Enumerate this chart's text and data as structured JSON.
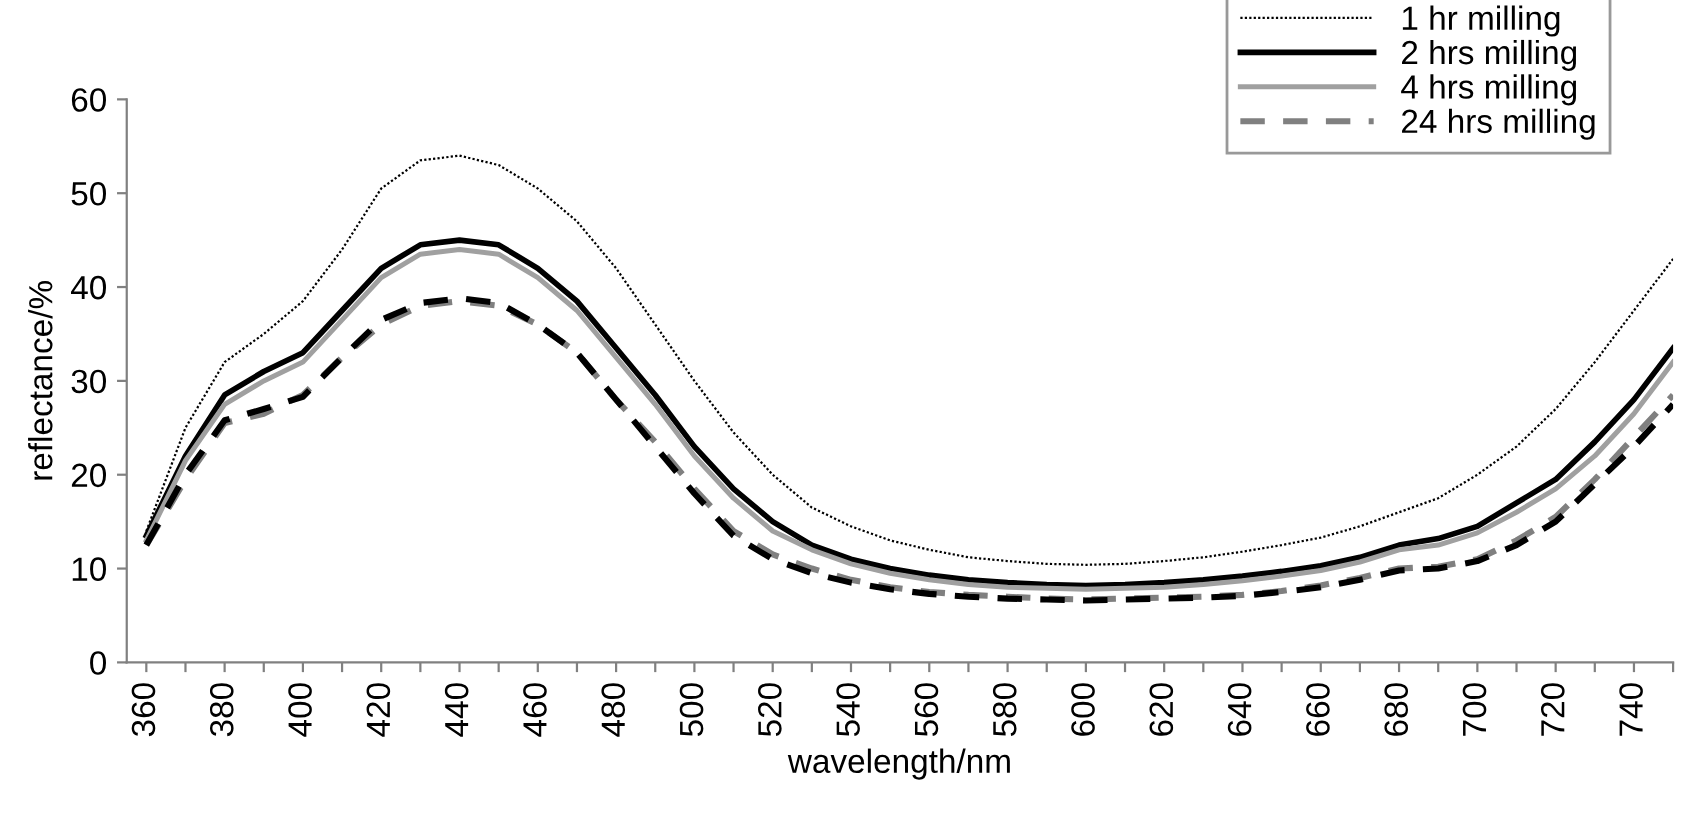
{
  "chart_data": {
    "type": "line",
    "xlabel": "wavelength/nm",
    "ylabel": "reflectance/%",
    "x": [
      360,
      370,
      380,
      390,
      400,
      410,
      420,
      430,
      440,
      450,
      460,
      470,
      480,
      490,
      500,
      510,
      520,
      530,
      540,
      550,
      560,
      570,
      580,
      590,
      600,
      610,
      620,
      630,
      640,
      650,
      660,
      670,
      680,
      690,
      700,
      710,
      720,
      730,
      740,
      750
    ],
    "xlim": [
      355,
      750
    ],
    "xticks": [
      360,
      {
        "value": 370,
        "label": null
      },
      380,
      {
        "value": 390,
        "label": null
      },
      400,
      {
        "value": 410,
        "label": null
      },
      420,
      {
        "value": 430,
        "label": null
      },
      440,
      {
        "value": 450,
        "label": null
      },
      460,
      {
        "value": 470,
        "label": null
      },
      480,
      {
        "value": 490,
        "label": null
      },
      500,
      {
        "value": 510,
        "label": null
      },
      520,
      {
        "value": 530,
        "label": null
      },
      540,
      {
        "value": 550,
        "label": null
      },
      560,
      {
        "value": 570,
        "label": null
      },
      580,
      {
        "value": 590,
        "label": null
      },
      600,
      {
        "value": 610,
        "label": null
      },
      620,
      {
        "value": 630,
        "label": null
      },
      640,
      {
        "value": 650,
        "label": null
      },
      660,
      {
        "value": 670,
        "label": null
      },
      680,
      {
        "value": 690,
        "label": null
      },
      700,
      {
        "value": 710,
        "label": null
      },
      720,
      {
        "value": 730,
        "label": null
      },
      740,
      {
        "value": 750,
        "label": null
      }
    ],
    "ylim": [
      0,
      60
    ],
    "yticks": [
      0,
      10,
      20,
      30,
      40,
      50,
      60
    ],
    "grid": false,
    "legend": "top right",
    "marker": "none",
    "series": [
      {
        "name": "1 hr milling",
        "color": "#000000",
        "line_style": "dotted",
        "values": [
          14,
          25,
          32,
          35,
          38.5,
          44,
          50.5,
          53.5,
          54,
          53,
          50.5,
          47,
          42,
          36,
          30,
          24.5,
          20,
          16.5,
          14.5,
          13,
          12,
          11.2,
          10.8,
          10.5,
          10.4,
          10.5,
          10.8,
          11.2,
          11.8,
          12.5,
          13.3,
          14.5,
          16,
          17.5,
          20,
          23,
          27,
          32,
          37.5,
          43
        ]
      },
      {
        "name": "2 hrs milling",
        "color": "#000000",
        "line_style": "solid",
        "values": [
          13.5,
          22,
          28.5,
          31,
          33,
          37.5,
          42,
          44.5,
          45,
          44.5,
          42,
          38.5,
          33.5,
          28.5,
          23,
          18.5,
          15,
          12.5,
          11,
          10,
          9.3,
          8.8,
          8.5,
          8.3,
          8.2,
          8.3,
          8.5,
          8.8,
          9.2,
          9.7,
          10.3,
          11.2,
          12.5,
          13.2,
          14.5,
          17,
          19.5,
          23.5,
          28,
          33.5
        ]
      },
      {
        "name": "4 hrs milling",
        "color": "#a0a0a0",
        "line_style": "solid",
        "values": [
          13,
          21.5,
          27.5,
          30,
          32,
          36.5,
          41,
          43.5,
          44,
          43.5,
          41,
          37.5,
          32.5,
          27.5,
          22,
          17.5,
          14,
          12,
          10.5,
          9.5,
          8.8,
          8.3,
          8,
          7.9,
          7.8,
          7.9,
          8,
          8.3,
          8.7,
          9.2,
          9.8,
          10.7,
          12,
          12.5,
          13.8,
          16,
          18.5,
          22,
          26.5,
          32
        ]
      },
      {
        "name": "24 hrs milling",
        "color": "#808080",
        "line_style": "dashed",
        "values": [
          12.5,
          19.5,
          25.5,
          26.5,
          28.5,
          32.5,
          36,
          38,
          38.5,
          38,
          36,
          33,
          28,
          23.5,
          18.5,
          14,
          11.5,
          10,
          8.8,
          8,
          7.5,
          7.2,
          7,
          6.8,
          6.7,
          6.8,
          6.9,
          7,
          7.2,
          7.6,
          8.2,
          9,
          10,
          10.2,
          11,
          13,
          15.5,
          19.5,
          24,
          28.5
        ]
      },
      {
        "color": "#000000",
        "line_style": "dashed",
        "values": [
          12.5,
          20,
          25.8,
          27,
          28.3,
          32.5,
          36.5,
          38.3,
          38.8,
          38.3,
          36,
          33,
          28,
          23,
          18,
          13.5,
          11,
          9.5,
          8.5,
          7.8,
          7.3,
          7,
          6.8,
          6.7,
          6.6,
          6.7,
          6.8,
          6.9,
          7.1,
          7.5,
          8,
          8.8,
          9.8,
          10,
          10.8,
          12.5,
          15,
          19,
          23,
          27.5
        ]
      }
    ]
  }
}
